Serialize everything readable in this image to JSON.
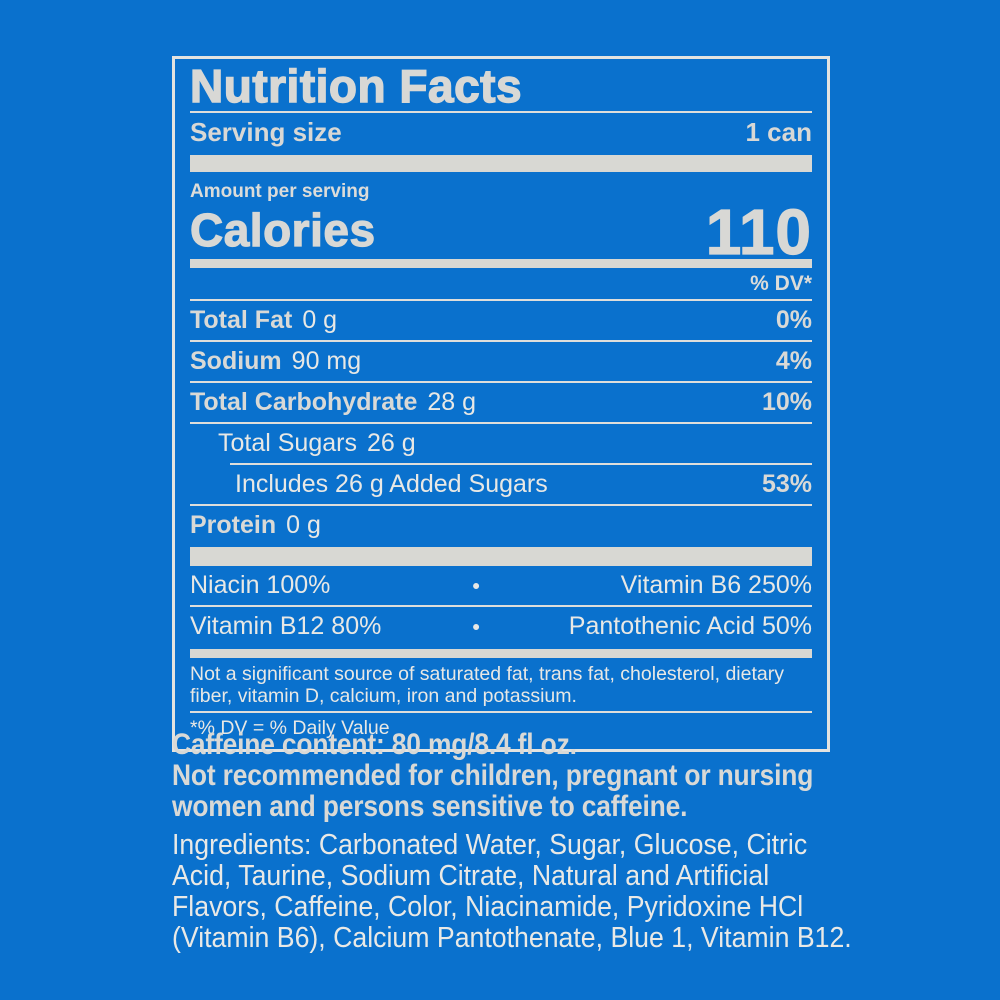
{
  "colors": {
    "background_blue": "#0a71cd",
    "label_ink": "#d8d8d5",
    "regular_text": "#e8e8e5",
    "bar_fill": "#d8d8d3",
    "border": "#e3e3e0"
  },
  "label": {
    "title": "Nutrition Facts",
    "serving_size_label": "Serving size",
    "serving_size_value": "1 can",
    "amount_per_serving": "Amount per serving",
    "calories_label": "Calories",
    "calories_value": "110",
    "dv_header": "% DV*",
    "rows": [
      {
        "name": "Total Fat",
        "amount": "0 g",
        "dv": "0%"
      },
      {
        "name": "Sodium",
        "amount": "90 mg",
        "dv": "4%"
      },
      {
        "name": "Total Carbohydrate",
        "amount": "28 g",
        "dv": "10%"
      },
      {
        "name": "Total Sugars",
        "amount": "26 g",
        "dv": ""
      },
      {
        "name": "Includes 26 g Added Sugars",
        "amount": "",
        "dv": "53%"
      },
      {
        "name": "Protein",
        "amount": "0 g",
        "dv": ""
      }
    ],
    "bullet": "•",
    "vitamins": [
      {
        "left": "Niacin 100%",
        "right": "Vitamin B6 250%"
      },
      {
        "left": "Vitamin B12 80%",
        "right": "Pantothenic Acid 50%"
      }
    ],
    "not_significant_lines": [
      "Not a significant source of saturated fat, trans fat, cholesterol, dietary",
      "fiber, vitamin D, calcium, iron and potassium."
    ],
    "dv_footnote": "*% DV = % Daily Value"
  },
  "caffeine": {
    "lines": [
      "Caffeine content: 80 mg/8.4 fl oz.",
      "Not recommended for children, pregnant or nursing",
      "women and persons sensitive to caffeine."
    ]
  },
  "ingredients": {
    "lines": [
      "Ingredients: Carbonated Water, Sugar, Glucose, Citric",
      "Acid, Taurine, Sodium Citrate, Natural and Artificial",
      "Flavors, Caffeine, Color, Niacinamide, Pyridoxine HCl",
      "(Vitamin B6), Calcium Pantothenate, Blue 1, Vitamin B12."
    ]
  }
}
